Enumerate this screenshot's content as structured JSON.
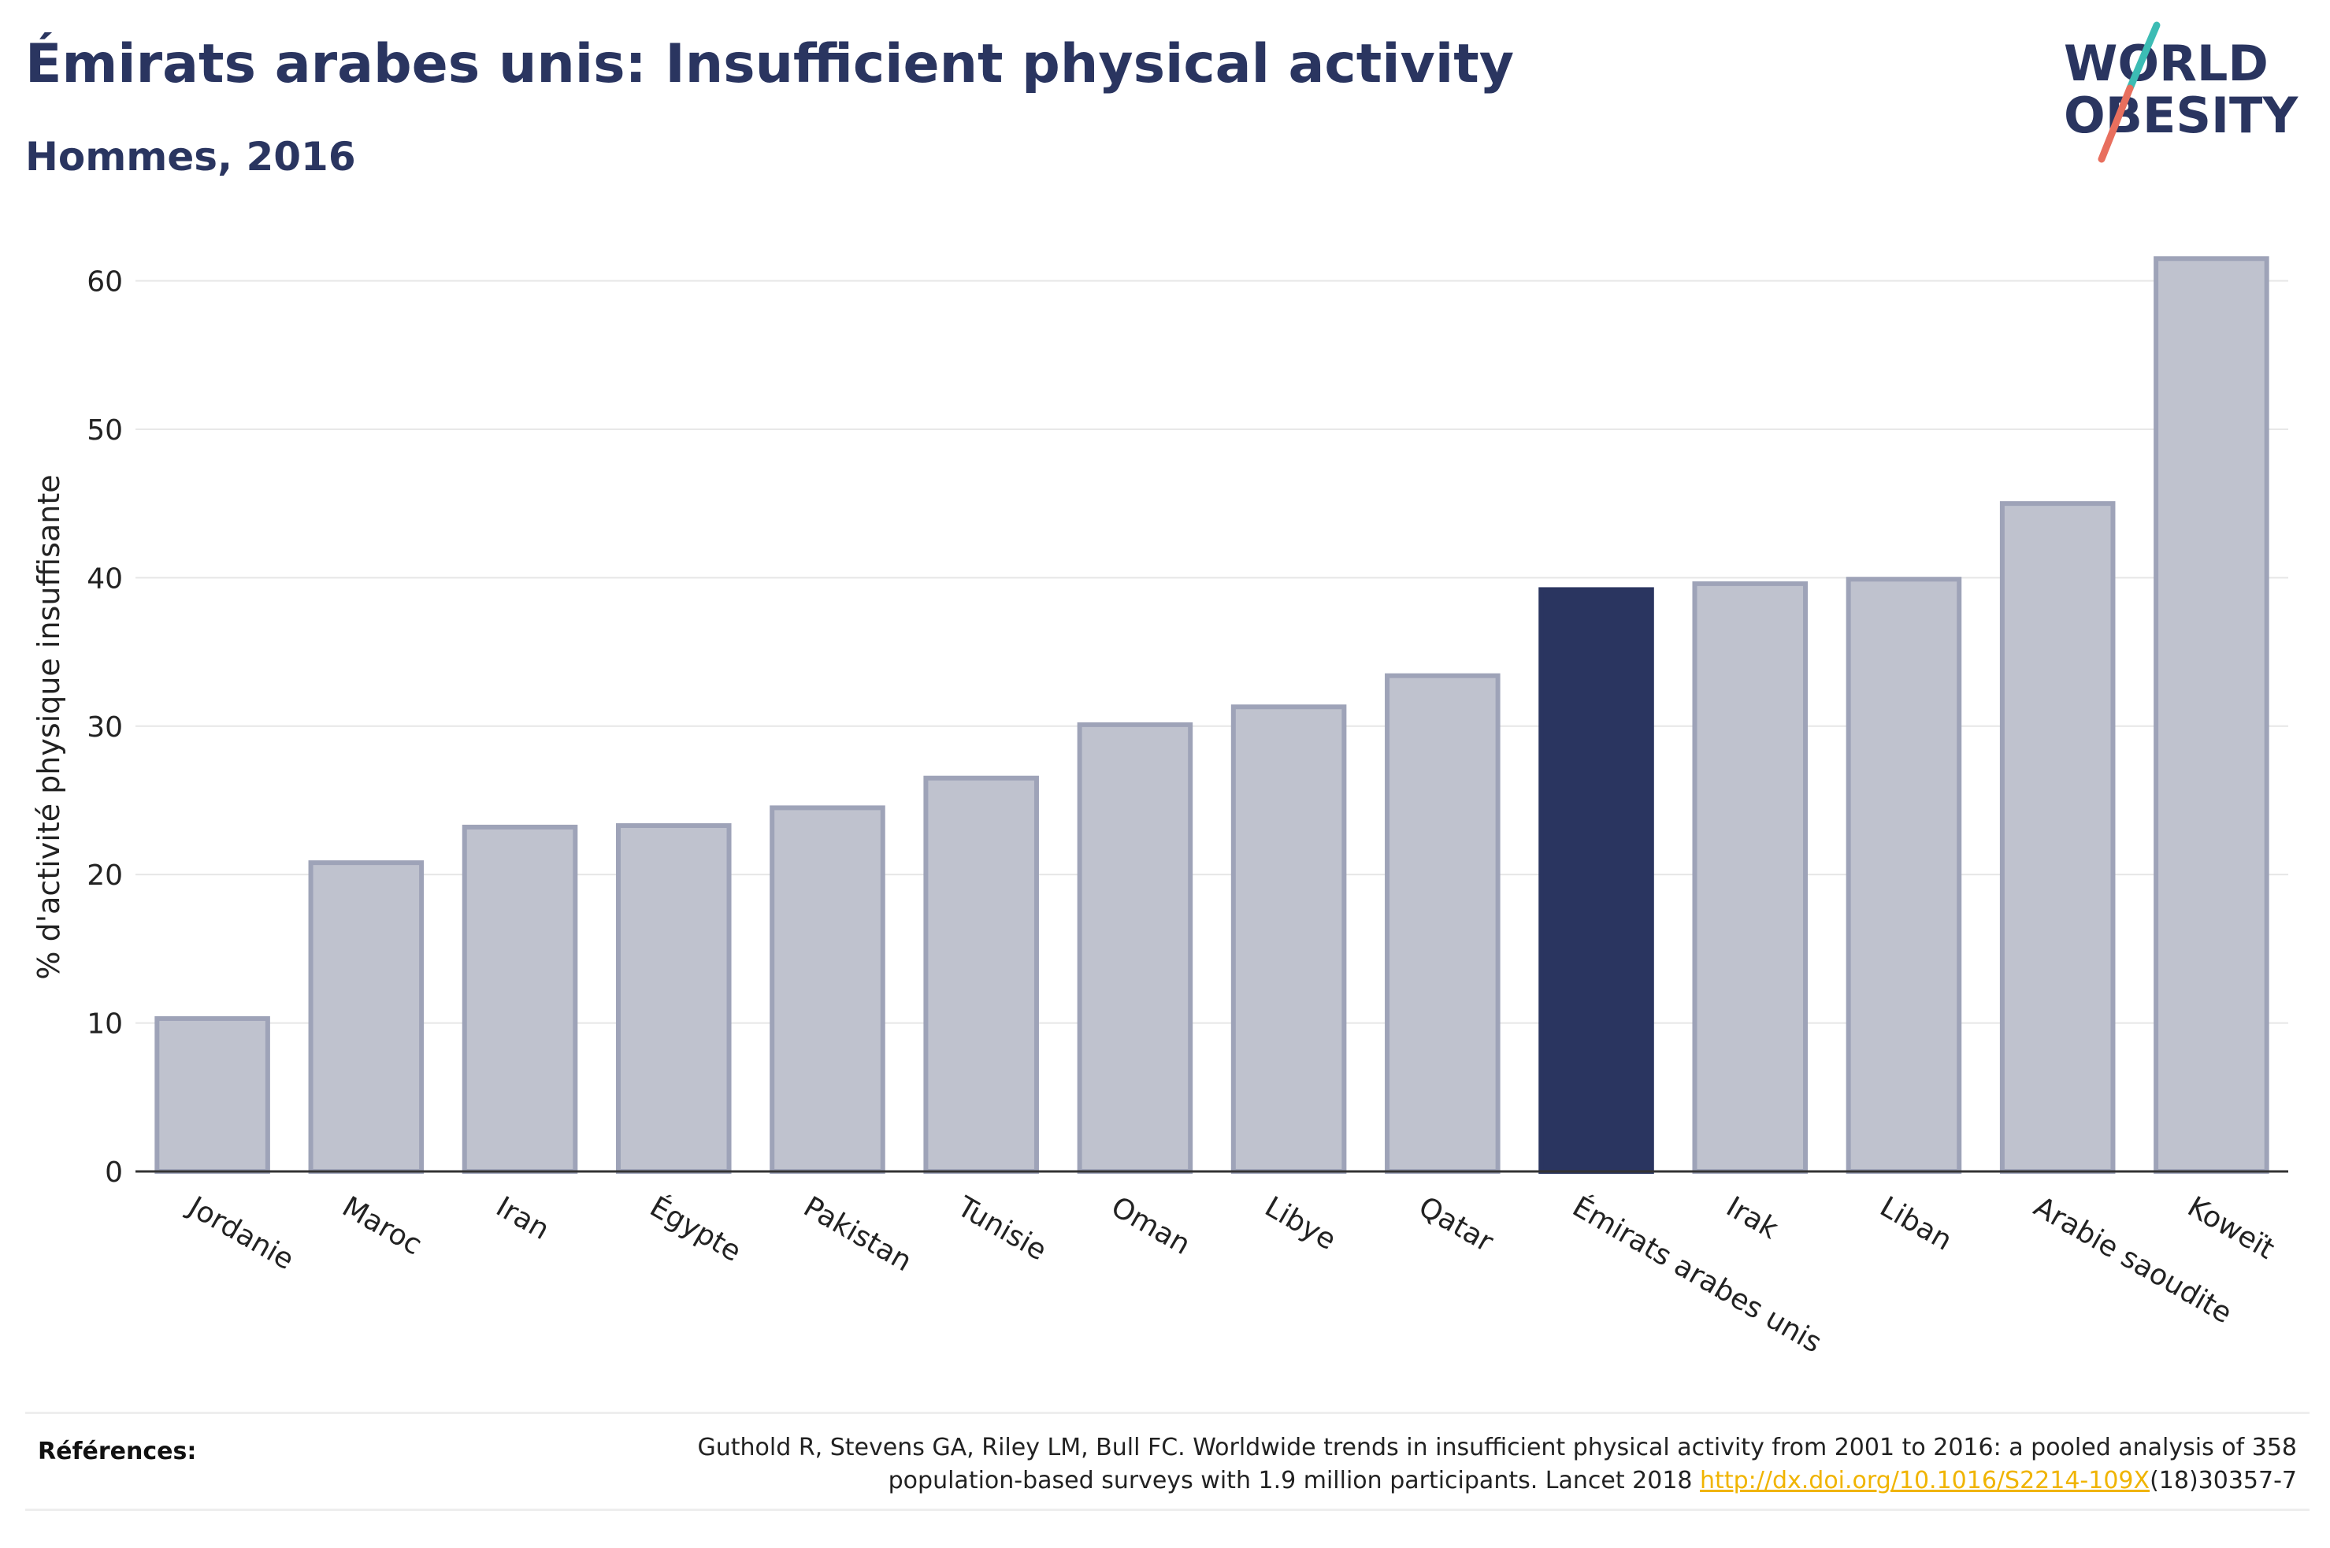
{
  "header": {
    "title": "Émirats arabes unis: Insufficient physical activity",
    "subtitle": "Hommes, 2016"
  },
  "logo": {
    "line1": "WORLD",
    "line2": "OBESITY"
  },
  "references": {
    "label": "Références:",
    "text_line1": "Guthold R, Stevens GA, Riley LM, Bull FC. Worldwide trends in insufficient physical activity from 2001 to 2016: a pooled analysis of 358",
    "text_line2_before": "population-based surveys with 1.9 million participants. Lancet 2018 ",
    "link": "http://dx.doi.org/10.1016/S2214-109X",
    "text_line2_after": "(18)30357-7"
  },
  "colors": {
    "highlight": "#2a3560",
    "bar_fill": "#bfc2ce",
    "bar_stroke": "#9ea3b8",
    "title": "#2a3560",
    "grid": "#e6e6e6",
    "link": "#f0b400"
  },
  "chart_data": {
    "type": "bar",
    "title": "Émirats arabes unis: Insufficient physical activity",
    "subtitle": "Hommes, 2016",
    "xlabel": "",
    "ylabel": "% d'activité physique insuffisante",
    "ylim": [
      0,
      63
    ],
    "yticks": [
      0,
      10,
      20,
      30,
      40,
      50,
      60
    ],
    "grid": true,
    "highlight": "Émirats arabes unis",
    "categories": [
      "Jordanie",
      "Maroc",
      "Iran",
      "Égypte",
      "Pakistan",
      "Tunisie",
      "Oman",
      "Libye",
      "Qatar",
      "Émirats arabes unis",
      "Irak",
      "Liban",
      "Arabie saoudite",
      "Koweït"
    ],
    "values": [
      10.3,
      20.8,
      23.2,
      23.3,
      24.5,
      26.5,
      30.1,
      31.3,
      33.4,
      39.2,
      39.6,
      39.9,
      45.0,
      61.5
    ]
  }
}
